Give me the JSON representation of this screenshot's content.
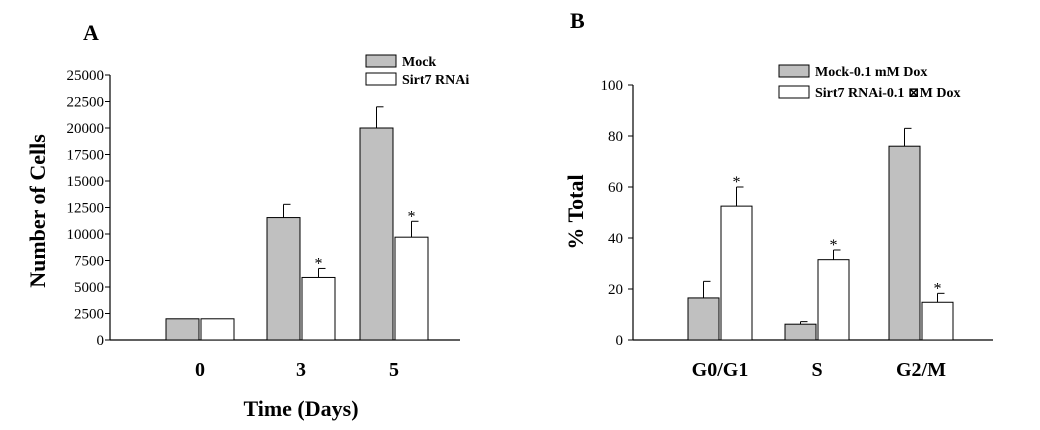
{
  "chart_data": [
    {
      "panel": "A",
      "type": "bar",
      "categories": [
        "0",
        "3",
        "5"
      ],
      "xlabel": "Time (Days)",
      "ylabel": "Number of Cells",
      "ylim": [
        0,
        25000
      ],
      "yticks": [
        "0",
        "2500",
        "5000",
        "7500",
        "10000",
        "12500",
        "15000",
        "17500",
        "20000",
        "22500",
        "25000"
      ],
      "legend_position": "top-right",
      "series": [
        {
          "name": "Mock",
          "color": "#c0c0c0",
          "values": [
            2000,
            11550,
            20000
          ],
          "errors": [
            0,
            1250,
            2000
          ],
          "significant": [
            false,
            false,
            false
          ]
        },
        {
          "name": "Sirt7 RNAi",
          "color": "#ffffff",
          "values": [
            2000,
            5900,
            9700
          ],
          "errors": [
            0,
            850,
            1500
          ],
          "significant": [
            false,
            true,
            true
          ]
        }
      ]
    },
    {
      "panel": "B",
      "type": "bar",
      "categories": [
        "G0/G1",
        "S",
        "G2/M"
      ],
      "xlabel": "",
      "ylabel": "% Total",
      "ylim": [
        0,
        100
      ],
      "yticks": [
        "0",
        "20",
        "40",
        "60",
        "80",
        "100"
      ],
      "legend_position": "top-right",
      "series": [
        {
          "name": "Mock-0.1 mM Dox",
          "color": "#c0c0c0",
          "values": [
            16.5,
            6.2,
            76
          ],
          "errors": [
            6.5,
            1.0,
            7
          ],
          "significant": [
            false,
            false,
            false
          ]
        },
        {
          "name": "Sirt7 RNAi-0.1 ⊠M Dox",
          "color": "#ffffff",
          "values": [
            52.5,
            31.5,
            14.8
          ],
          "errors": [
            7.5,
            3.8,
            3.5
          ],
          "significant": [
            true,
            true,
            true
          ]
        }
      ]
    }
  ]
}
